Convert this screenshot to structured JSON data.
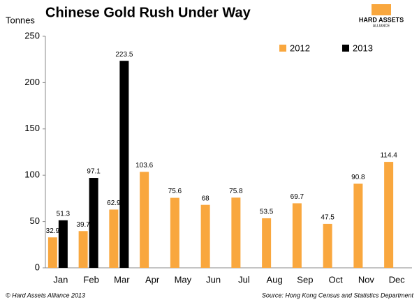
{
  "chart_data": {
    "type": "bar",
    "title": "Chinese Gold Rush Under Way",
    "y_label": "Tonnes",
    "logo": "HARD ASSETS",
    "logo_sub": "ALLIANCE",
    "categories": [
      "Jan",
      "Feb",
      "Mar",
      "Apr",
      "May",
      "Jun",
      "Jul",
      "Aug",
      "Sep",
      "Oct",
      "Nov",
      "Dec"
    ],
    "series": [
      {
        "name": "2012",
        "color": "#f9a73e",
        "values": [
          32.9,
          39.7,
          62.9,
          103.6,
          75.6,
          68,
          75.8,
          53.5,
          69.7,
          47.5,
          90.8,
          114.4
        ]
      },
      {
        "name": "2013",
        "color": "#000000",
        "values": [
          51.3,
          97.1,
          223.5,
          null,
          null,
          null,
          null,
          null,
          null,
          null,
          null,
          null
        ]
      }
    ],
    "ylim": [
      0,
      250
    ],
    "yticks": [
      0,
      50,
      100,
      150,
      200,
      250
    ],
    "grid": false,
    "legend": "top-right",
    "copyright": "© Hard Assets Alliance 2013",
    "source": "Source: Hong Kong Census and Statistics Department"
  }
}
